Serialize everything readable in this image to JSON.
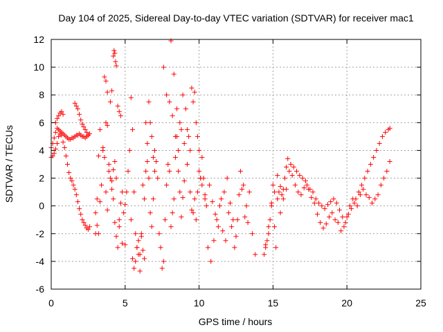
{
  "chart_data": {
    "type": "scatter",
    "title": "Day 104 of 2025, Sidereal Day-to-day VTEC variation (SDTVAR) for receiver mac1",
    "xlabel": "GPS time / hours",
    "ylabel": "SDTVAR / TECUs",
    "xlim": [
      0,
      25
    ],
    "ylim": [
      -6,
      12
    ],
    "xticks": [
      0,
      5,
      10,
      15,
      20,
      25
    ],
    "yticks": [
      -6,
      -4,
      -2,
      0,
      2,
      4,
      6,
      8,
      10,
      12
    ],
    "xtick_labels": [
      "0",
      "5",
      "10",
      "15",
      "20",
      "25"
    ],
    "ytick_labels": [
      "-6",
      "-4",
      "-2",
      "0",
      "2",
      "4",
      "6",
      "8",
      "10",
      "12"
    ],
    "grid": true,
    "marker": "+",
    "color": "#ff0000",
    "series": [
      {
        "name": "mac1",
        "x": [
          0.0,
          0.1,
          0.2,
          0.3,
          0.4,
          0.5,
          0.6,
          0.7,
          0.8,
          0.9,
          1.0,
          1.1,
          1.2,
          1.3,
          1.4,
          1.5,
          1.6,
          1.7,
          1.8,
          1.9,
          2.0,
          2.1,
          2.2,
          2.3,
          2.4,
          2.5,
          2.6,
          0.0,
          0.1,
          0.2,
          0.3,
          0.4,
          0.5,
          0.6,
          0.7,
          0.8,
          0.9,
          1.0,
          1.1,
          1.2,
          1.3,
          1.4,
          1.5,
          1.6,
          1.7,
          1.8,
          1.9,
          2.0,
          2.1,
          2.2,
          2.3,
          2.4,
          2.5,
          2.6,
          0.3,
          0.4,
          0.5,
          0.6,
          0.7,
          0.8,
          1.6,
          1.7,
          1.8,
          1.9,
          2.0,
          2.1,
          2.2,
          2.3,
          2.4,
          2.5,
          3.0,
          3.1,
          3.2,
          3.3,
          3.4,
          3.5,
          3.6,
          3.7,
          3.8,
          3.9,
          4.0,
          4.1,
          4.2,
          4.3,
          4.4,
          4.5,
          4.6,
          4.7,
          4.8,
          4.9,
          5.0,
          3.0,
          3.1,
          3.2,
          3.3,
          3.5,
          3.7,
          3.8,
          3.9,
          4.1,
          4.2,
          4.3,
          4.4,
          4.6,
          4.8,
          5.0,
          3.6,
          3.7,
          3.8,
          4.0,
          4.1,
          4.2,
          4.25,
          4.3,
          4.35,
          4.4,
          4.5,
          4.6,
          4.7,
          5.1,
          5.2,
          5.3,
          5.4,
          5.5,
          5.6,
          5.7,
          5.8,
          5.9,
          6.0,
          6.1,
          6.2,
          6.3,
          6.4,
          6.5,
          6.6,
          6.7,
          6.8,
          6.9,
          7.0,
          5.4,
          5.5,
          5.6,
          5.7,
          5.8,
          5.9,
          6.0,
          6.1,
          6.2,
          6.3,
          6.4,
          6.5,
          6.6,
          6.7,
          6.8,
          6.9,
          7.0,
          7.1,
          7.2,
          7.3,
          7.4,
          7.5,
          7.6,
          7.7,
          7.8,
          7.9,
          8.0,
          8.1,
          8.2,
          8.3,
          8.4,
          8.5,
          8.6,
          8.7,
          8.8,
          8.9,
          9.0,
          7.6,
          7.8,
          8.0,
          8.2,
          8.4,
          8.6,
          8.8,
          9.0,
          8.1,
          8.3,
          8.5,
          8.7,
          8.9,
          9.1,
          9.2,
          9.3,
          9.4,
          9.5,
          9.6,
          9.7,
          9.8,
          9.9,
          10.0,
          10.1,
          10.2,
          10.3,
          10.4,
          10.5,
          9.2,
          9.4,
          9.6,
          9.8,
          10.0,
          10.2,
          10.4,
          9.5,
          9.7,
          9.9,
          10.1,
          10.6,
          10.8,
          11.0,
          11.2,
          11.4,
          11.6,
          11.8,
          12.0,
          12.2,
          12.4,
          12.6,
          12.8,
          13.0,
          13.2,
          13.4,
          13.6,
          13.8,
          10.7,
          10.9,
          11.1,
          11.3,
          11.5,
          11.7,
          11.9,
          12.1,
          12.3,
          12.5,
          12.7,
          12.9,
          13.1,
          13.3,
          14.4,
          14.5,
          14.6,
          14.7,
          14.8,
          14.9,
          15.0,
          15.1,
          15.2,
          15.3,
          15.4,
          15.5,
          15.6,
          15.7,
          15.8,
          15.9,
          16.0,
          14.5,
          14.7,
          14.9,
          15.1,
          15.3,
          15.5,
          15.7,
          15.9,
          16.1,
          16.3,
          16.5,
          16.7,
          16.9,
          17.1,
          17.3,
          17.5,
          17.7,
          17.9,
          18.1,
          18.3,
          18.5,
          18.7,
          18.9,
          16.2,
          16.4,
          16.6,
          16.8,
          17.0,
          17.2,
          17.4,
          17.6,
          17.8,
          18.0,
          18.2,
          18.4,
          18.6,
          18.8,
          19.0,
          19.2,
          19.4,
          19.6,
          19.8,
          20.0,
          20.2,
          20.4,
          20.6,
          20.8,
          21.0,
          21.2,
          21.4,
          21.6,
          21.8,
          22.0,
          22.2,
          22.4,
          22.6,
          22.8,
          22.9,
          19.1,
          19.3,
          19.5,
          19.7,
          19.9,
          20.1,
          20.3,
          20.5,
          20.7,
          20.9,
          21.1,
          21.3,
          21.5,
          21.7,
          21.9,
          22.1,
          22.3,
          22.5,
          22.7,
          22.9
        ],
        "y": [
          4.2,
          4.5,
          4.9,
          5.3,
          5.6,
          5.5,
          5.4,
          5.3,
          5.2,
          5.1,
          5.0,
          4.9,
          4.8,
          4.8,
          4.9,
          4.9,
          5.0,
          5.1,
          5.1,
          5.2,
          5.1,
          5.0,
          5.0,
          4.9,
          5.0,
          5.1,
          5.2,
          3.5,
          3.6,
          3.8,
          4.1,
          4.5,
          5.0,
          5.2,
          5.1,
          4.6,
          4.2,
          3.6,
          3.0,
          2.4,
          2.0,
          1.8,
          1.5,
          1.2,
          0.8,
          0.3,
          -0.2,
          -0.6,
          -1.0,
          -1.2,
          -1.4,
          -1.6,
          -1.7,
          -1.5,
          6.0,
          6.3,
          6.5,
          6.7,
          6.8,
          6.6,
          7.4,
          7.2,
          7.0,
          6.6,
          6.2,
          5.9,
          5.7,
          5.5,
          5.3,
          5.1,
          -0.5,
          -1.4,
          -2.0,
          0.3,
          1.5,
          4.0,
          3.5,
          6.0,
          5.8,
          2.5,
          2.0,
          1.8,
          0.5,
          -1.2,
          -2.2,
          -3.0,
          -1.5,
          0.2,
          1.0,
          -0.5,
          -2.8,
          -2.0,
          0.5,
          3.6,
          5.5,
          4.2,
          1.0,
          -0.3,
          3.0,
          1.2,
          2.6,
          3.2,
          2.0,
          -1.0,
          -2.7,
          0.1,
          9.3,
          9.0,
          8.2,
          7.5,
          8.3,
          10.8,
          11.2,
          11.0,
          10.4,
          10.1,
          7.2,
          6.8,
          6.5,
          1.0,
          2.5,
          4.0,
          -1.0,
          -3.8,
          -4.5,
          -4.0,
          -3.0,
          -2.5,
          -3.5,
          -2.0,
          1.5,
          0.5,
          2.5,
          3.2,
          7.5,
          6.0,
          5.0,
          3.5,
          4.0,
          7.8,
          5.5,
          1.0,
          -2.0,
          -3.0,
          -3.5,
          -4.7,
          -2.2,
          -3.2,
          -3.8,
          6.0,
          4.5,
          2.0,
          -0.5,
          -1.5,
          0.5,
          2.5,
          3.2,
          2.0,
          -2.0,
          -3.0,
          -4.5,
          -4.0,
          -1.0,
          1.5,
          3.0,
          2.5,
          -1.5,
          -0.5,
          0.5,
          3.5,
          5.0,
          2.5,
          1.0,
          -0.8,
          0.6,
          1.8,
          10.0,
          8.0,
          7.5,
          6.5,
          5.0,
          4.0,
          5.5,
          4.5,
          11.9,
          9.5,
          7.0,
          6.0,
          8.0,
          7.0,
          5.5,
          5.0,
          4.0,
          8.5,
          7.5,
          8.2,
          6.0,
          5.0,
          4.0,
          2.0,
          3.5,
          2.0,
          0.5,
          0.0,
          3.0,
          1.0,
          -0.5,
          -1.0,
          2.5,
          1.5,
          0.8,
          -0.3,
          0.5,
          1.0,
          2.0,
          -3.0,
          -4.0,
          -2.5,
          -1.0,
          0.0,
          -1.8,
          -2.5,
          -0.5,
          -1.5,
          -3.0,
          -1.0,
          2.5,
          1.5,
          0.0,
          1.0,
          -2.0,
          -3.5,
          1.5,
          0.3,
          -0.6,
          -1.5,
          0.5,
          1.0,
          2.0,
          0.2,
          -1.0,
          -2.2,
          0.8,
          1.2,
          -0.8,
          -1.2,
          -3.5,
          -3.0,
          -2.5,
          -2.0,
          -1.0,
          0.0,
          1.5,
          -1.5,
          -3.0,
          0.5,
          1.0,
          -0.5,
          0.8,
          1.2,
          2.0,
          2.8,
          3.4,
          -2.8,
          -1.5,
          0.2,
          1.0,
          2.2,
          1.4,
          0.5,
          1.2,
          2.5,
          2.2,
          1.5,
          1.0,
          0.8,
          1.3,
          1.5,
          1.2,
          1.0,
          0.5,
          0.2,
          0.0,
          -0.2,
          0.1,
          0.3,
          3.0,
          2.8,
          2.5,
          2.2,
          2.0,
          1.8,
          1.2,
          0.6,
          0.2,
          -0.6,
          -1.2,
          -1.6,
          -1.3,
          -0.8,
          -0.5,
          -1.0,
          -1.2,
          -1.8,
          -1.5,
          -0.8,
          0.0,
          0.5,
          0.5,
          1.0,
          1.5,
          2.0,
          2.5,
          3.0,
          3.5,
          4.0,
          4.5,
          5.0,
          5.3,
          5.5,
          5.6,
          0.5,
          0.2,
          -0.3,
          -0.8,
          -1.2,
          -0.6,
          -0.2,
          0.2,
          0.0,
          0.8,
          1.2,
          0.8,
          0.6,
          0.2,
          0.5,
          0.8,
          1.5,
          2.0,
          2.5,
          3.2
        ]
      }
    ]
  }
}
